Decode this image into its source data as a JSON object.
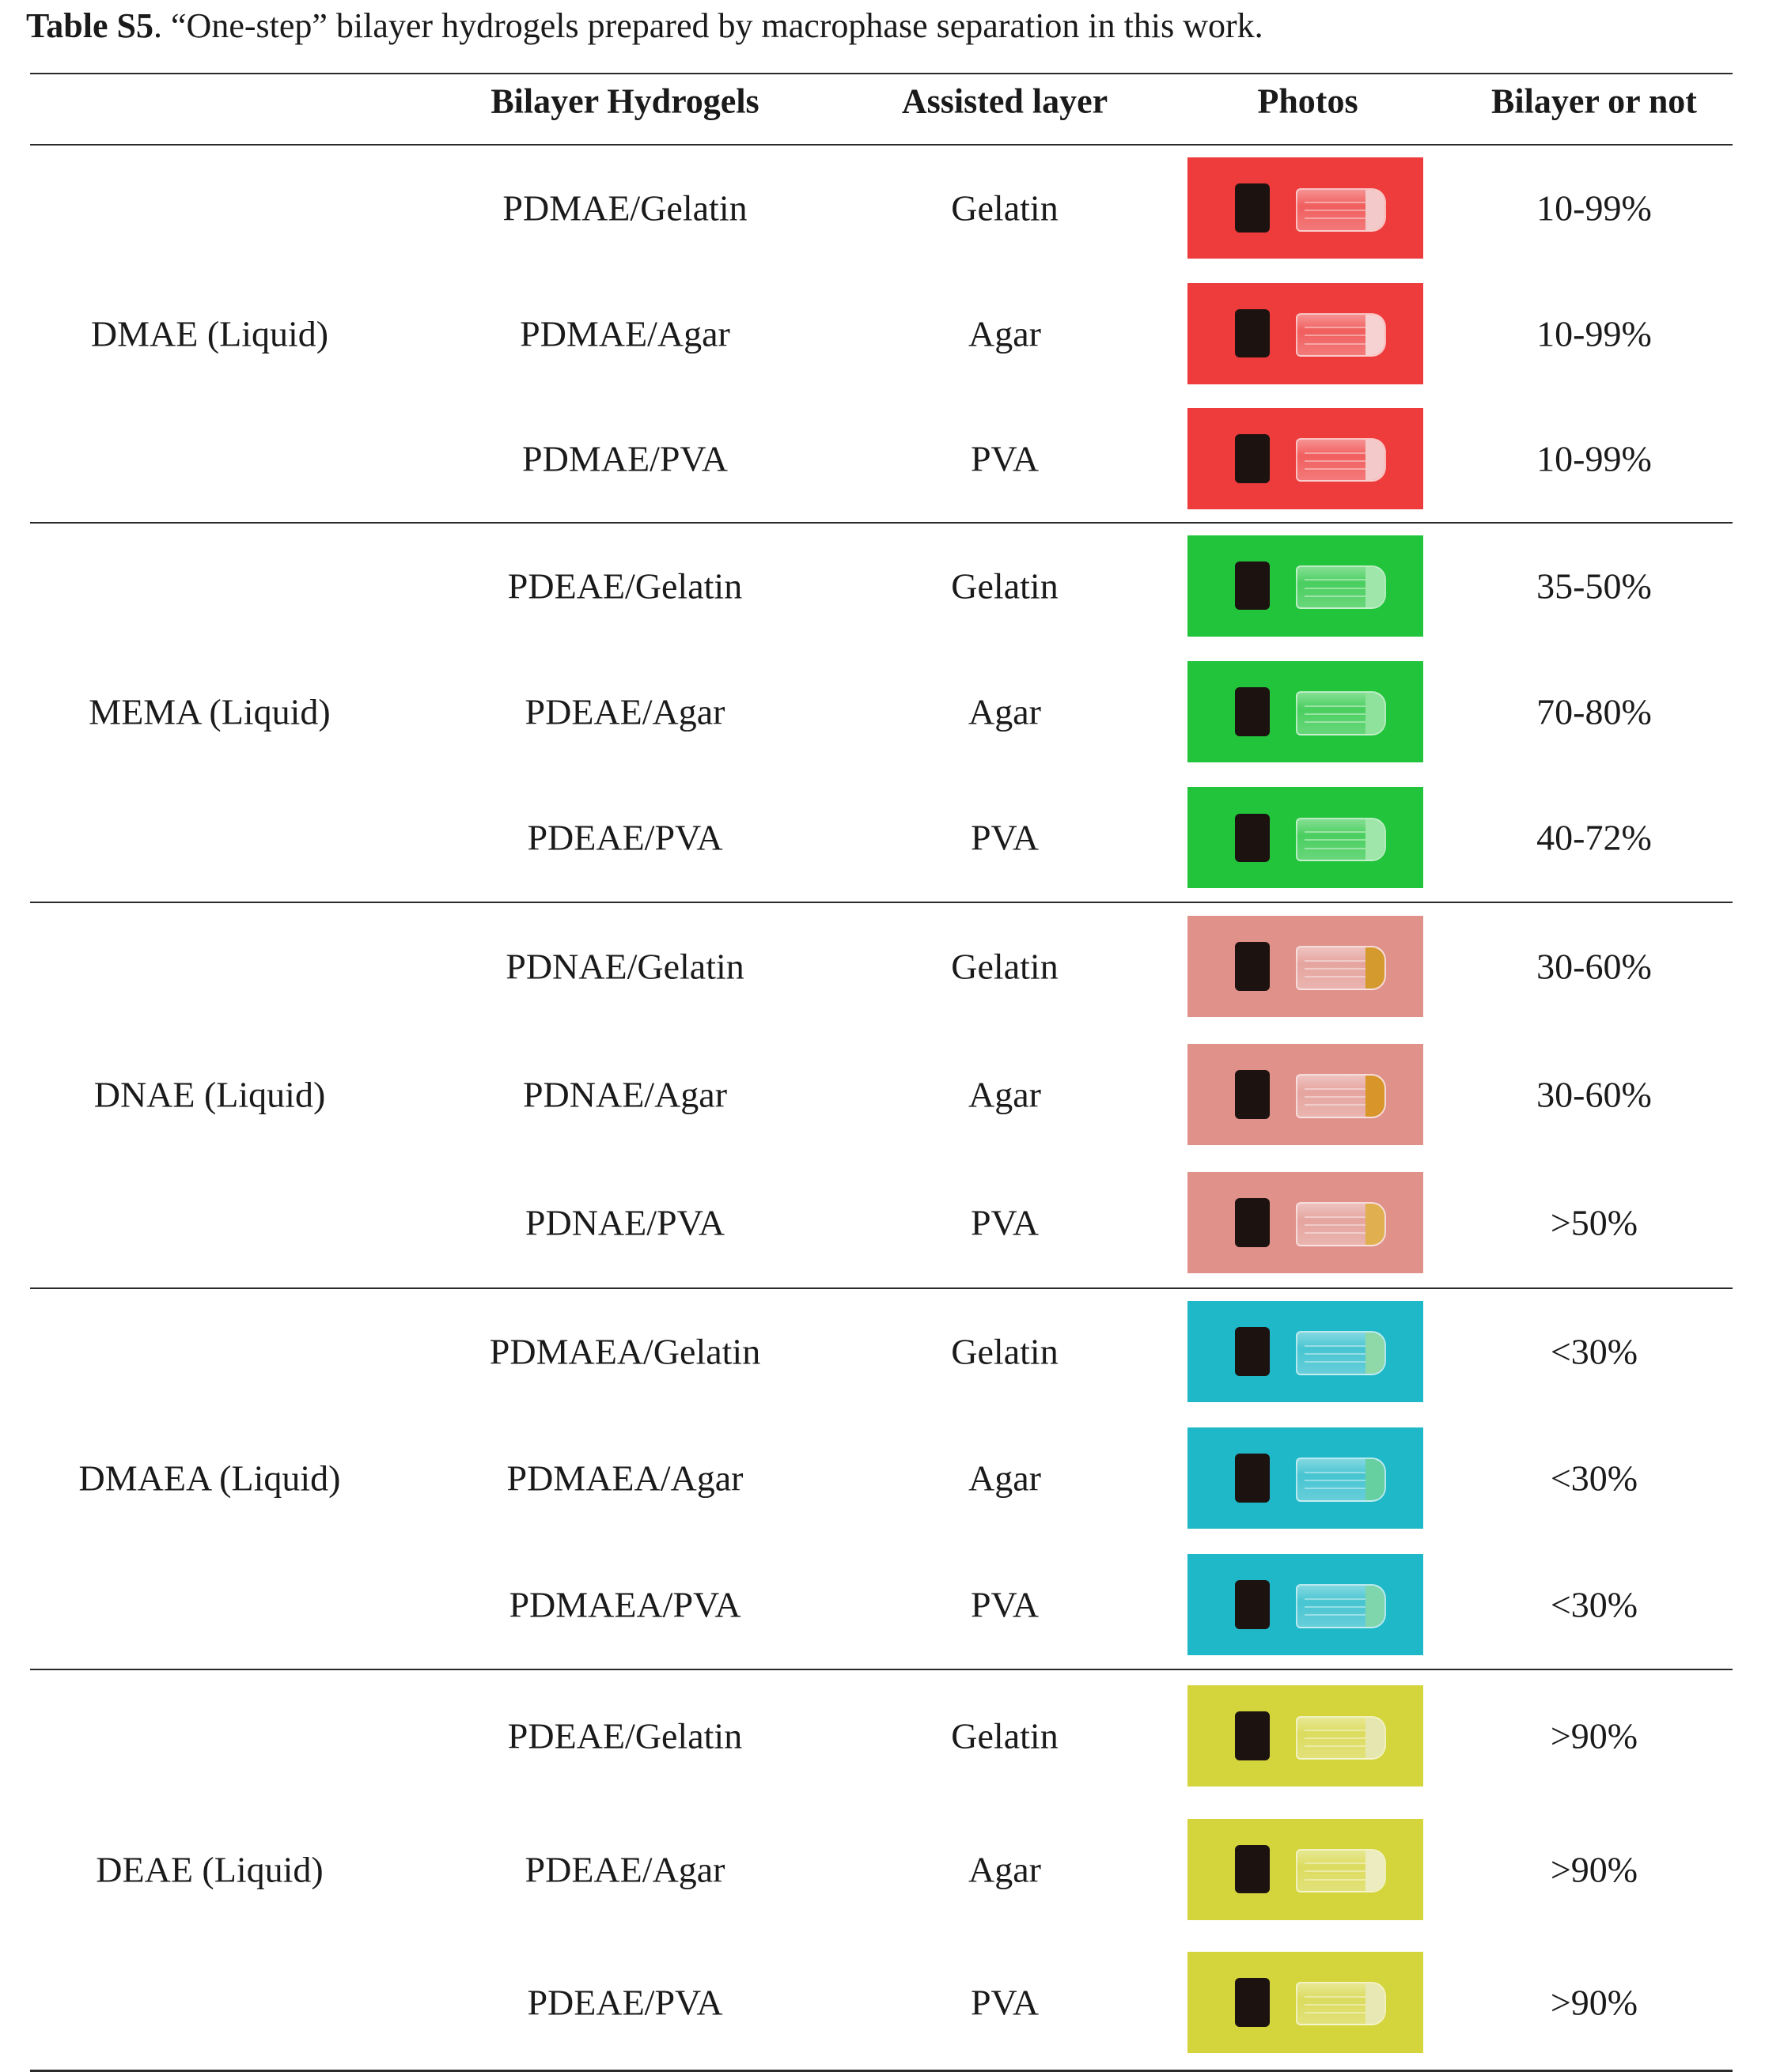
{
  "caption": {
    "label": "Table S5",
    "text": ". “One-step” bilayer hydrogels prepared by macrophase separation in this work."
  },
  "headers": {
    "col1": "Bilayer Hydrogels",
    "col2": "Assisted layer",
    "col3": "Photos",
    "col4": "Bilayer or not"
  },
  "groups": [
    {
      "monomer": "DMAE (Liquid)",
      "photo_color": "#ee3b3b",
      "rows": [
        {
          "hydrogel": "PDMAE/Gelatin",
          "layer": "Gelatin",
          "bilayer": "10-99%",
          "liquid_color": "#f3c9c9"
        },
        {
          "hydrogel": "PDMAE/Agar",
          "layer": "Agar",
          "bilayer": "10-99%",
          "liquid_color": "#f6d2d2"
        },
        {
          "hydrogel": "PDMAE/PVA",
          "layer": "PVA",
          "bilayer": "10-99%",
          "liquid_color": "#f3c9c9"
        }
      ]
    },
    {
      "monomer": "MEMA (Liquid)",
      "photo_color": "#22c43c",
      "rows": [
        {
          "hydrogel": "PDEAE/Gelatin",
          "layer": "Gelatin",
          "bilayer": "35-50%",
          "liquid_color": "#9ee6aa"
        },
        {
          "hydrogel": "PDEAE/Agar",
          "layer": "Agar",
          "bilayer": "70-80%",
          "liquid_color": "#8fe29c"
        },
        {
          "hydrogel": "PDEAE/PVA",
          "layer": "PVA",
          "bilayer": "40-72%",
          "liquid_color": "#9ee6aa"
        }
      ]
    },
    {
      "monomer": "DNAE (Liquid)",
      "photo_color": "#e0918a",
      "rows": [
        {
          "hydrogel": "PDNAE/Gelatin",
          "layer": "Gelatin",
          "bilayer": "30-60%",
          "liquid_color": "#d59a2e"
        },
        {
          "hydrogel": "PDNAE/Agar",
          "layer": "Agar",
          "bilayer": "30-60%",
          "liquid_color": "#d8962a"
        },
        {
          "hydrogel": "PDNAE/PVA",
          "layer": "PVA",
          "bilayer": ">50%",
          "liquid_color": "#e0b050"
        }
      ]
    },
    {
      "monomer": "DMAEA (Liquid)",
      "photo_color": "#1fb8c8",
      "rows": [
        {
          "hydrogel": "PDMAEA/Gelatin",
          "layer": "Gelatin",
          "bilayer": "<30%",
          "liquid_color": "#8fd8a8"
        },
        {
          "hydrogel": "PDMAEA/Agar",
          "layer": "Agar",
          "bilayer": "<30%",
          "liquid_color": "#66d0a0"
        },
        {
          "hydrogel": "PDMAEA/PVA",
          "layer": "PVA",
          "bilayer": "<30%",
          "liquid_color": "#7fd6ac"
        }
      ]
    },
    {
      "monomer": "DEAE (Liquid)",
      "photo_color": "#d4d43c",
      "rows": [
        {
          "hydrogel": "PDEAE/Gelatin",
          "layer": "Gelatin",
          "bilayer": ">90%",
          "liquid_color": "#e6e6b0"
        },
        {
          "hydrogel": "PDEAE/Agar",
          "layer": "Agar",
          "bilayer": ">90%",
          "liquid_color": "#ececc0"
        },
        {
          "hydrogel": "PDEAE/PVA",
          "layer": "PVA",
          "bilayer": ">90%",
          "liquid_color": "#e8e8b4"
        }
      ]
    }
  ]
}
